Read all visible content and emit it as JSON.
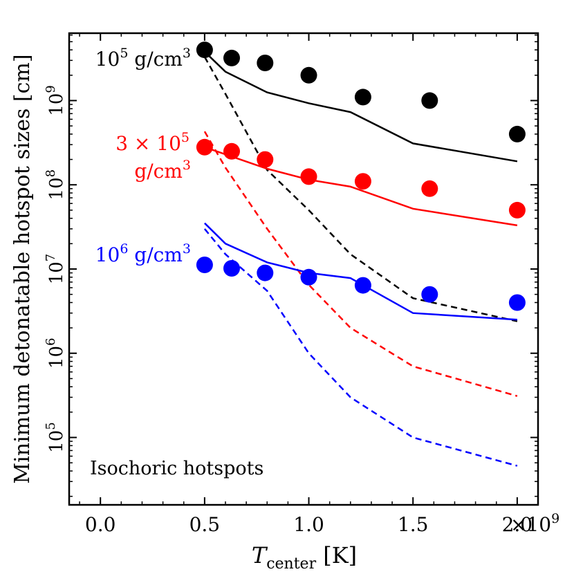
{
  "chart_data": {
    "type": "scatter",
    "xlabel": "T",
    "xlabel_sub": "center",
    "xlabel_unit": "[K]",
    "ylabel": "Minimum detonatable hotspot sizes [cm]",
    "annotation": "Isochoric hotspots",
    "x_scale_label": {
      "base": "×10",
      "exp": "9"
    },
    "xlim": [
      -0.15,
      2.1
    ],
    "ylim_log10": [
      4.2,
      9.8
    ],
    "x_ticks": [
      {
        "v": 0.0,
        "label": "0.0"
      },
      {
        "v": 0.5,
        "label": "0.5"
      },
      {
        "v": 1.0,
        "label": "1.0"
      },
      {
        "v": 1.5,
        "label": "1.5"
      },
      {
        "v": 2.0,
        "label": "2.0"
      }
    ],
    "y_ticks": [
      {
        "e": 5,
        "base": "10",
        "exp": "5"
      },
      {
        "e": 6,
        "base": "10",
        "exp": "6"
      },
      {
        "e": 7,
        "base": "10",
        "exp": "7"
      },
      {
        "e": 8,
        "base": "10",
        "exp": "8"
      },
      {
        "e": 9,
        "base": "10",
        "exp": "9"
      }
    ],
    "series": [
      {
        "color": "#000000",
        "label_lines": [
          {
            "base": "10",
            "exp": "5",
            "rest": " g/cm",
            "exp2": "3"
          }
        ],
        "points": {
          "x": [
            0.5,
            0.63,
            0.79,
            1.0,
            1.26,
            1.58,
            2.0
          ],
          "y": [
            4000000000.0,
            3200000000.0,
            2800000000.0,
            2000000000.0,
            1100000000.0,
            1000000000.0,
            400000000.0
          ]
        },
        "solid": {
          "x": [
            0.5,
            0.6,
            0.8,
            1.0,
            1.2,
            1.5,
            2.0
          ],
          "y": [
            3800000000.0,
            2200000000.0,
            1250000000.0,
            930000000.0,
            730000000.0,
            310000000.0,
            190000000.0
          ]
        },
        "dashed": {
          "x": [
            0.5,
            0.6,
            0.8,
            1.0,
            1.2,
            1.5,
            2.0
          ],
          "y": [
            3300000000.0,
            1200000000.0,
            150000000.0,
            50000000.0,
            15000000.0,
            4500000.0,
            2400000.0
          ]
        }
      },
      {
        "color": "#ff0000",
        "label_lines": [
          {
            "base": "3 × 10",
            "exp": "5"
          },
          {
            "rest": "g/cm",
            "exp2": "3"
          }
        ],
        "points": {
          "x": [
            0.5,
            0.63,
            0.79,
            1.0,
            1.26,
            1.58,
            2.0
          ],
          "y": [
            280000000.0,
            250000000.0,
            200000000.0,
            125000000.0,
            110000000.0,
            90000000.0,
            50000000.0
          ]
        },
        "solid": {
          "x": [
            0.5,
            0.6,
            0.8,
            1.0,
            1.2,
            1.5,
            2.0
          ],
          "y": [
            280000000.0,
            230000000.0,
            155000000.0,
            115000000.0,
            95000000.0,
            52000000.0,
            33000000.0
          ]
        },
        "dashed": {
          "x": [
            0.5,
            0.6,
            0.8,
            1.0,
            1.2,
            1.5,
            2.0
          ],
          "y": [
            430000000.0,
            160000000.0,
            30000000.0,
            6500000.0,
            2000000.0,
            700000.0,
            310000.0
          ]
        }
      },
      {
        "color": "#0000ff",
        "label_lines": [
          {
            "base": "10",
            "exp": "6",
            "rest": " g/cm",
            "exp2": "3"
          }
        ],
        "points": {
          "x": [
            0.5,
            0.63,
            0.79,
            1.0,
            1.26,
            1.58,
            2.0
          ],
          "y": [
            11200000.0,
            10200000.0,
            9000000.0,
            8000000.0,
            6400000.0,
            5000000.0,
            4000000.0
          ]
        },
        "solid": {
          "x": [
            0.5,
            0.6,
            0.8,
            1.0,
            1.2,
            1.5,
            2.0
          ],
          "y": [
            35000000.0,
            20000000.0,
            12000000.0,
            9000000.0,
            7800000.0,
            3000000.0,
            2500000.0
          ]
        },
        "dashed": {
          "x": [
            0.5,
            0.6,
            0.8,
            1.0,
            1.2,
            1.5,
            2.0
          ],
          "y": [
            30000000.0,
            15000000.0,
            5500000.0,
            1000000.0,
            300000.0,
            100000.0,
            46000.0
          ]
        }
      }
    ]
  }
}
